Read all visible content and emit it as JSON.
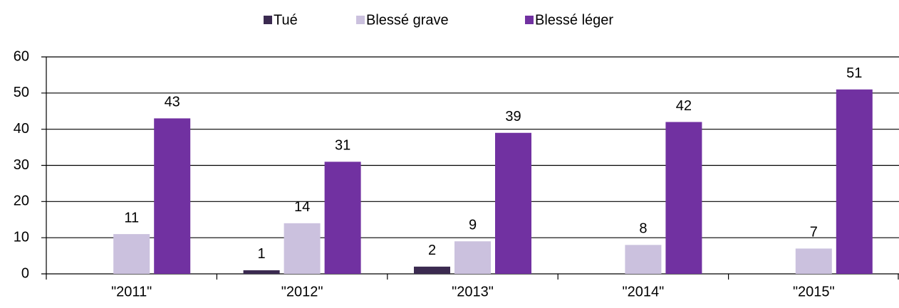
{
  "chart_data": {
    "type": "bar",
    "categories": [
      "\"2011\"",
      "\"2012\"",
      "\"2013\"",
      "\"2014\"",
      "\"2015\""
    ],
    "series": [
      {
        "name": "Tué",
        "color": "#3b2a50",
        "values": [
          null,
          1,
          2,
          null,
          null
        ]
      },
      {
        "name": "Blessé grave",
        "color": "#cbc1de",
        "values": [
          11,
          14,
          9,
          8,
          7
        ]
      },
      {
        "name": "Blessé léger",
        "color": "#7131a1",
        "values": [
          43,
          31,
          39,
          42,
          51
        ]
      }
    ],
    "ylim": [
      0,
      60
    ],
    "yticks": [
      0,
      10,
      20,
      30,
      40,
      50,
      60
    ],
    "grid": true,
    "legend": "top"
  }
}
